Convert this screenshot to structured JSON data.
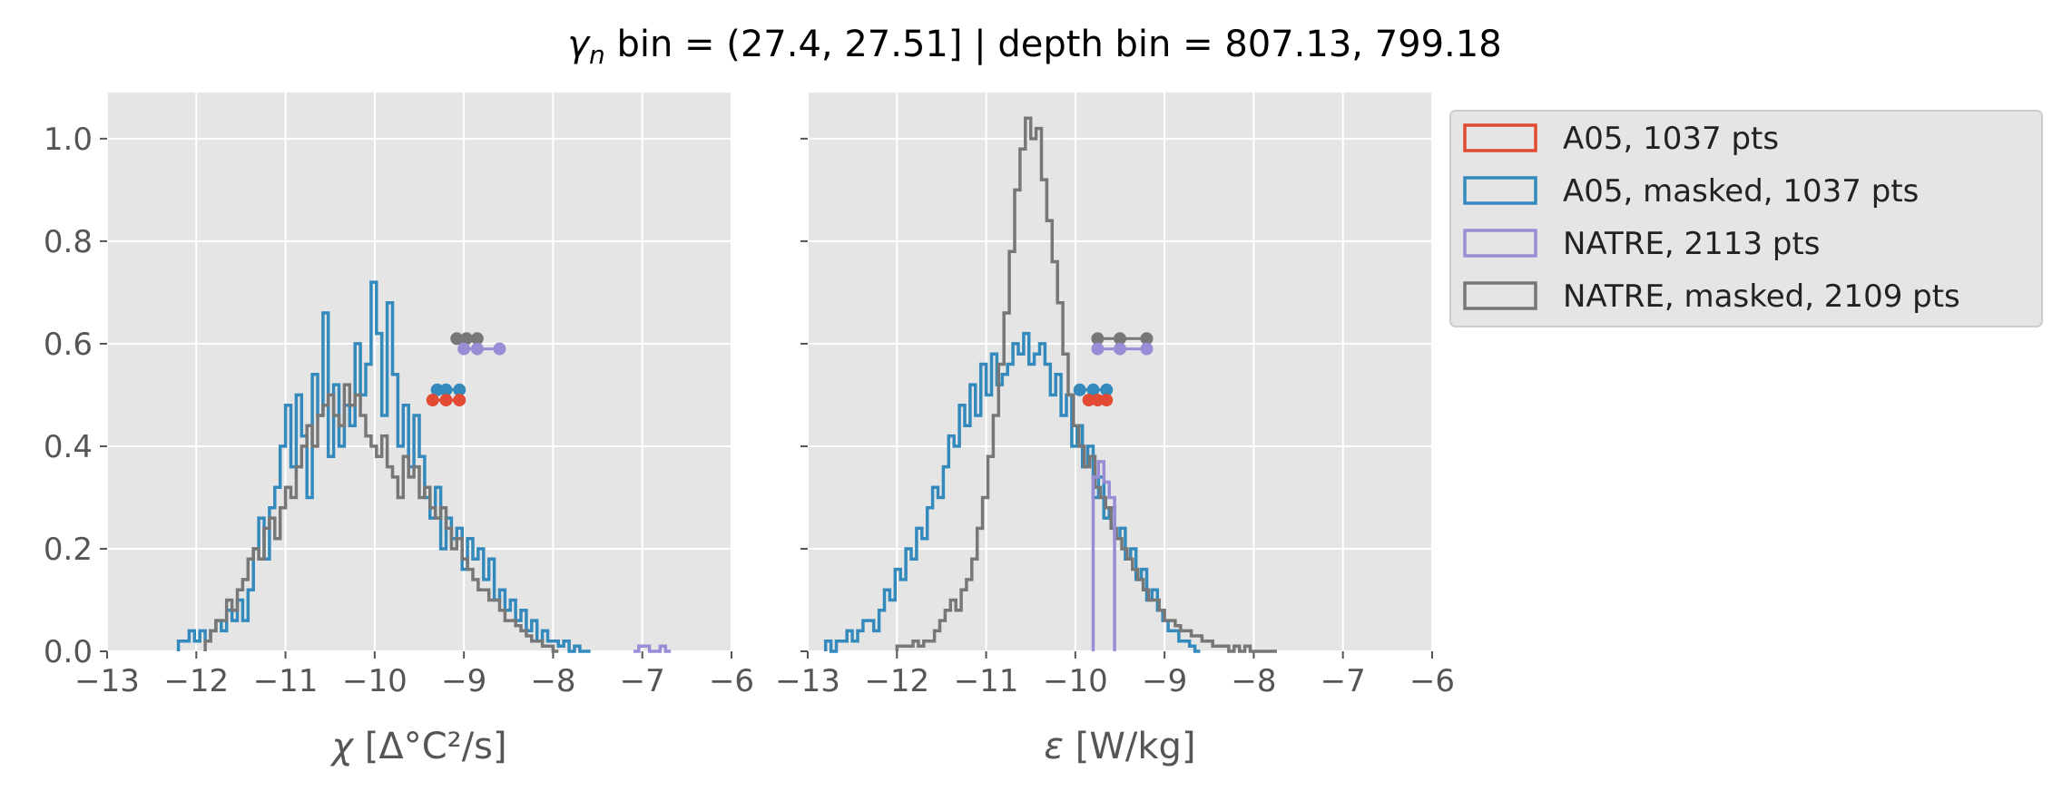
{
  "figure": {
    "title_symbol": "γ",
    "title_subscript": "n",
    "title_rest": " bin = (27.4, 27.51] | depth bin = 807.13, 799.18"
  },
  "colors": {
    "A05": "#E24A33",
    "A05_masked": "#348ABD",
    "NATRE": "#988ED5",
    "NATRE_masked": "#777777",
    "axes_bg": "#E5E5E5",
    "grid": "#FFFFFF"
  },
  "legend": {
    "placement": "outside-right",
    "entries": [
      {
        "key": "A05",
        "label": "A05, 1037 pts"
      },
      {
        "key": "A05_masked",
        "label": "A05, masked,  1037 pts"
      },
      {
        "key": "NATRE",
        "label": "NATRE, 2113 pts"
      },
      {
        "key": "NATRE_masked",
        "label": "NATRE, masked,  2109 pts"
      }
    ]
  },
  "chart_data": [
    {
      "type": "histogram-step",
      "xlabel_symbol": "χ",
      "xlabel_rest": " [Δ°C²/s]",
      "xlim": [
        -13,
        -6
      ],
      "ylim": [
        0,
        1.09
      ],
      "xticks": [
        -13,
        -12,
        -11,
        -10,
        -9,
        -8,
        -7,
        -6
      ],
      "xtick_labels": [
        "−13",
        "−12",
        "−11",
        "−10",
        "−9",
        "−8",
        "−7",
        "−6"
      ],
      "yticks": [
        0,
        0.2,
        0.4,
        0.6,
        0.8,
        1.0
      ],
      "ytick_labels": [
        "0.0",
        "0.2",
        "0.4",
        "0.6",
        "0.8",
        "1.0"
      ],
      "grid": true,
      "series": [
        {
          "key": "A05_masked",
          "bin_width": 0.06,
          "x_start": -12.2,
          "values": [
            0.02,
            0.02,
            0.04,
            0.02,
            0.04,
            0.02,
            0.04,
            0.06,
            0.04,
            0.08,
            0.06,
            0.1,
            0.06,
            0.12,
            0.2,
            0.26,
            0.18,
            0.28,
            0.32,
            0.4,
            0.48,
            0.36,
            0.5,
            0.42,
            0.3,
            0.54,
            0.46,
            0.66,
            0.38,
            0.52,
            0.4,
            0.48,
            0.44,
            0.6,
            0.5,
            0.56,
            0.72,
            0.62,
            0.46,
            0.68,
            0.54,
            0.4,
            0.48,
            0.36,
            0.46,
            0.38,
            0.3,
            0.26,
            0.32,
            0.2,
            0.26,
            0.22,
            0.24,
            0.16,
            0.22,
            0.18,
            0.2,
            0.14,
            0.18,
            0.1,
            0.12,
            0.08,
            0.1,
            0.06,
            0.08,
            0.04,
            0.06,
            0.02,
            0.04,
            0.02,
            0.02,
            0.01,
            0.02,
            0.0,
            0.01,
            0.0,
            0.0
          ]
        },
        {
          "key": "NATRE_masked",
          "bin_width": 0.06,
          "x_start": -11.9,
          "values": [
            0.02,
            0.04,
            0.06,
            0.06,
            0.1,
            0.08,
            0.12,
            0.14,
            0.18,
            0.2,
            0.18,
            0.24,
            0.26,
            0.22,
            0.28,
            0.32,
            0.3,
            0.36,
            0.4,
            0.44,
            0.4,
            0.46,
            0.48,
            0.5,
            0.46,
            0.44,
            0.52,
            0.48,
            0.5,
            0.46,
            0.42,
            0.4,
            0.38,
            0.42,
            0.36,
            0.34,
            0.3,
            0.38,
            0.34,
            0.36,
            0.3,
            0.32,
            0.28,
            0.26,
            0.28,
            0.24,
            0.2,
            0.22,
            0.18,
            0.16,
            0.14,
            0.12,
            0.12,
            0.1,
            0.1,
            0.08,
            0.06,
            0.06,
            0.05,
            0.04,
            0.03,
            0.02,
            0.02,
            0.01,
            0.01,
            0.0
          ]
        },
        {
          "key": "NATRE",
          "bin_width": 0.06,
          "x_start": -7.1,
          "values": [
            0.0,
            0.01,
            0.01,
            0.0,
            0.0,
            0.01,
            0.0
          ]
        }
      ],
      "markers": [
        {
          "key": "NATRE_masked",
          "x": [
            -9.08,
            -8.97,
            -8.85
          ],
          "y": 0.61
        },
        {
          "key": "NATRE",
          "x": [
            -9.0,
            -8.85,
            -8.6
          ],
          "y": 0.59
        },
        {
          "key": "A05_masked",
          "x": [
            -9.3,
            -9.2,
            -9.05
          ],
          "y": 0.51
        },
        {
          "key": "A05",
          "x": [
            -9.35,
            -9.2,
            -9.05
          ],
          "y": 0.49
        }
      ]
    },
    {
      "type": "histogram-step",
      "xlabel_symbol": "ε",
      "xlabel_rest": " [W/kg]",
      "xlim": [
        -13,
        -6
      ],
      "ylim": [
        0,
        1.09
      ],
      "xticks": [
        -13,
        -12,
        -11,
        -10,
        -9,
        -8,
        -7,
        -6
      ],
      "xtick_labels": [
        "−13",
        "−12",
        "−11",
        "−10",
        "−9",
        "−8",
        "−7",
        "−6"
      ],
      "yticks": [
        0,
        0.2,
        0.4,
        0.6,
        0.8,
        1.0
      ],
      "ytick_labels": [
        "",
        "",
        "",
        "",
        "",
        ""
      ],
      "grid": true,
      "series": [
        {
          "key": "A05_masked",
          "bin_width": 0.06,
          "x_start": -12.8,
          "values": [
            0.02,
            0.0,
            0.02,
            0.02,
            0.04,
            0.02,
            0.04,
            0.06,
            0.06,
            0.04,
            0.08,
            0.12,
            0.1,
            0.16,
            0.14,
            0.2,
            0.18,
            0.24,
            0.22,
            0.28,
            0.32,
            0.3,
            0.36,
            0.42,
            0.4,
            0.48,
            0.44,
            0.52,
            0.46,
            0.56,
            0.5,
            0.58,
            0.52,
            0.54,
            0.56,
            0.6,
            0.58,
            0.62,
            0.56,
            0.58,
            0.6,
            0.56,
            0.5,
            0.54,
            0.46,
            0.5,
            0.4,
            0.44,
            0.36,
            0.4,
            0.3,
            0.34,
            0.26,
            0.28,
            0.22,
            0.24,
            0.18,
            0.2,
            0.14,
            0.16,
            0.1,
            0.12,
            0.08,
            0.06,
            0.04,
            0.04,
            0.02,
            0.02,
            0.01,
            0.0
          ]
        },
        {
          "key": "NATRE_masked",
          "bin_width": 0.06,
          "x_start": -12.0,
          "values": [
            0.01,
            0.01,
            0.01,
            0.02,
            0.01,
            0.02,
            0.02,
            0.04,
            0.06,
            0.08,
            0.1,
            0.08,
            0.12,
            0.14,
            0.18,
            0.24,
            0.3,
            0.38,
            0.46,
            0.56,
            0.66,
            0.78,
            0.9,
            0.98,
            1.04,
            1.0,
            1.02,
            0.92,
            0.84,
            0.76,
            0.68,
            0.58,
            0.5,
            0.44,
            0.4,
            0.36,
            0.38,
            0.32,
            0.3,
            0.28,
            0.24,
            0.22,
            0.2,
            0.18,
            0.16,
            0.14,
            0.12,
            0.1,
            0.1,
            0.08,
            0.06,
            0.06,
            0.05,
            0.04,
            0.04,
            0.03,
            0.03,
            0.02,
            0.02,
            0.01,
            0.01,
            0.01,
            0.0,
            0.01,
            0.0,
            0.01,
            0.0,
            0.0,
            0.0,
            0.0,
            0.0
          ]
        },
        {
          "key": "NATRE",
          "bin_width": 0.06,
          "x_start": -9.8,
          "values": [
            0.34,
            0.37,
            0.33,
            0.3
          ]
        }
      ],
      "markers": [
        {
          "key": "NATRE_masked",
          "x": [
            -9.75,
            -9.5,
            -9.2
          ],
          "y": 0.61
        },
        {
          "key": "NATRE",
          "x": [
            -9.75,
            -9.5,
            -9.2
          ],
          "y": 0.59
        },
        {
          "key": "A05_masked",
          "x": [
            -9.95,
            -9.8,
            -9.65
          ],
          "y": 0.51
        },
        {
          "key": "A05",
          "x": [
            -9.85,
            -9.75,
            -9.65
          ],
          "y": 0.49
        }
      ]
    }
  ]
}
